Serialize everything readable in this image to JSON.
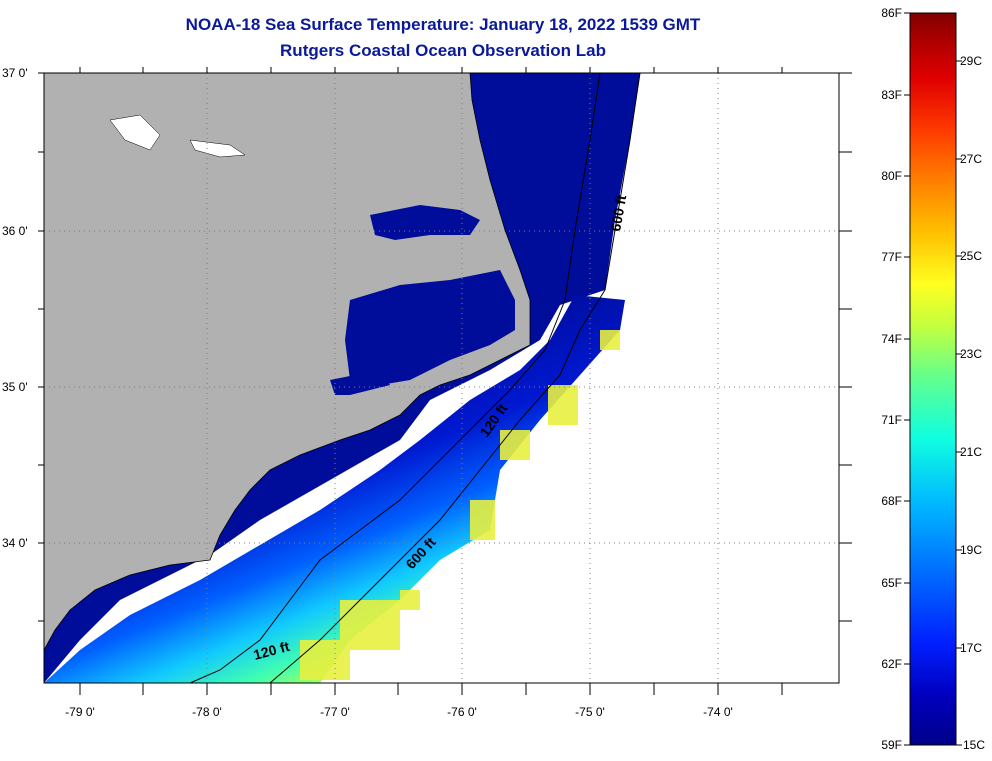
{
  "title_line1": "NOAA-18 Sea Surface Temperature:  January 18, 2022 1539 GMT",
  "title_line2": "Rutgers Coastal Ocean Observation Lab",
  "lat_labels": [
    "37 0'",
    "36 0'",
    "35 0'",
    "34 0'"
  ],
  "lon_labels": [
    "-79 0'",
    "-78 0'",
    "-77 0'",
    "-76 0'",
    "-75 0'",
    "-74 0'"
  ],
  "contour_labels": [
    "600 ft",
    "120 ft",
    "600 ft",
    "120 ft"
  ],
  "colorbar": {
    "fahrenheit": [
      "86F",
      "83F",
      "80F",
      "77F",
      "74F",
      "71F",
      "68F",
      "65F",
      "62F",
      "59F"
    ],
    "celsius": [
      "29C",
      "27C",
      "25C",
      "23C",
      "21C",
      "19C",
      "17C",
      "15C"
    ],
    "colors": [
      "#800000",
      "#b00000",
      "#e00000",
      "#ff3a00",
      "#ff8000",
      "#ffc000",
      "#ffff20",
      "#c0ff40",
      "#60ff90",
      "#10ffe0",
      "#00b8ff",
      "#0070ff",
      "#0020ff",
      "#0000c0",
      "#00008a"
    ]
  },
  "colors": {
    "land": "#b1b1b1",
    "cold_water": "#000c9a",
    "title": "#0a1a9a"
  }
}
